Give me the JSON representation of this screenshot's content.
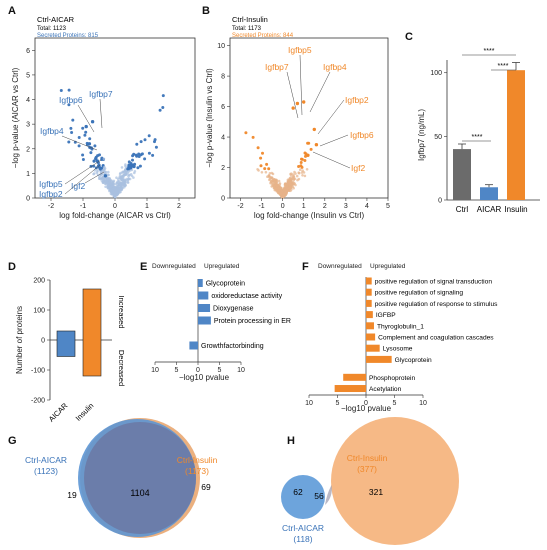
{
  "colors": {
    "aicar": "#3a73b8",
    "aicar_light": "#a9c1e0",
    "insulin": "#f0882a",
    "insulin_light": "#e7b48a",
    "ctrl": "#6b6b6b",
    "bar_blue": "#4f86c6"
  },
  "chart_data": [
    {
      "panel": "A",
      "type": "scatter",
      "title": "Ctrl-AICAR",
      "subtitle_total": "Total: 1123",
      "subtitle_secreted": "Secreted Proteins: 815",
      "xlabel": "log fold-change (AICAR vs Ctrl)",
      "ylabel": "−log p-value (AICAR vs Ctrl)",
      "xlim": [
        -2.5,
        2.5
      ],
      "ylim": [
        0,
        6.5
      ],
      "xticks": [
        "-2",
        "-1",
        "0",
        "1",
        "2"
      ],
      "yticks": [
        "0",
        "1",
        "2",
        "3",
        "4",
        "5",
        "6"
      ],
      "labels": [
        "Igfbp6",
        "Igfbp7",
        "Igfbp4",
        "Igfbp5",
        "Igfbp2",
        "Igf2"
      ],
      "labeled_points": [
        {
          "name": "Igfbp6",
          "x": -0.9,
          "y": 2.9
        },
        {
          "name": "Igfbp7",
          "x": -0.7,
          "y": 3.1
        },
        {
          "name": "Igfbp4",
          "x": -0.8,
          "y": 2.2
        },
        {
          "name": "Igfbp5",
          "x": -0.6,
          "y": 1.6
        },
        {
          "name": "Igfbp2",
          "x": -0.55,
          "y": 1.5
        },
        {
          "name": "Igf2",
          "x": -0.3,
          "y": 0.9
        }
      ]
    },
    {
      "panel": "B",
      "type": "scatter",
      "title": "Ctrl-Insulin",
      "subtitle_total": "Total: 1173",
      "subtitle_secreted": "Secreted Proteins: 844",
      "xlabel": "log fold-change (Insulin vs Ctrl)",
      "ylabel": "−log p-value (Insulin vs Ctrl)",
      "xlim": [
        -2.5,
        5
      ],
      "ylim": [
        0,
        10.5
      ],
      "xticks": [
        "-2",
        "-1",
        "0",
        "1",
        "2",
        "3",
        "4",
        "5"
      ],
      "yticks": [
        "0",
        "2",
        "4",
        "6",
        "8",
        "10"
      ],
      "labels": [
        "Igfbp5",
        "Igfbp7",
        "Igfbp4",
        "Igfbp2",
        "Igfbp6",
        "Igf2"
      ],
      "labeled_points": [
        {
          "name": "Igfbp5",
          "x": 0.7,
          "y": 6.2
        },
        {
          "name": "Igfbp7",
          "x": 0.5,
          "y": 5.9
        },
        {
          "name": "Igfbp4",
          "x": 1.0,
          "y": 6.3
        },
        {
          "name": "Igfbp2",
          "x": 1.5,
          "y": 4.5
        },
        {
          "name": "Igfbp6",
          "x": 1.6,
          "y": 3.5
        },
        {
          "name": "Igf2",
          "x": 1.2,
          "y": 2.8
        }
      ]
    },
    {
      "panel": "C",
      "type": "bar",
      "categories": [
        "Ctrl",
        "AICAR",
        "Insulin"
      ],
      "values": [
        40,
        10,
        102
      ],
      "errors": [
        4,
        2,
        6
      ],
      "ylabel": "Igfbp7 (ng/mL)",
      "ylim": [
        0,
        110
      ],
      "yticks": [
        "0",
        "50",
        "100"
      ],
      "significance": [
        "****",
        "****",
        "****"
      ]
    },
    {
      "panel": "D",
      "type": "bar",
      "categories": [
        "AICAR",
        "Insulin"
      ],
      "series": [
        {
          "name": "Increased",
          "values": [
            30,
            170
          ]
        },
        {
          "name": "Decreased",
          "values": [
            -55,
            -120
          ]
        }
      ],
      "ylabel": "Number of proteins",
      "ylim": [
        -200,
        200
      ],
      "yticks": [
        "200",
        "100",
        "0",
        "-100",
        "-200"
      ],
      "side_labels": [
        "Increased",
        "Decreased"
      ]
    },
    {
      "panel": "E",
      "type": "bar",
      "header_down": "Downregulated",
      "header_up": "Upregulated",
      "categories": [
        "Glycoprotein",
        "oxidoreductase activity",
        "Dioxygenase",
        "Protein processing in ER",
        "Growthfactorbinding"
      ],
      "values": [
        1.1,
        2.4,
        2.8,
        3.0,
        -2.0
      ],
      "xlabel": "−log10 pvalue",
      "xticks": [
        "10",
        "5",
        "0",
        "5",
        "10"
      ]
    },
    {
      "panel": "F",
      "type": "bar",
      "header_down": "Downregulated",
      "header_up": "Upregulated",
      "categories": [
        "positive regulation of signal transduction",
        "positive regulation of signaling",
        "positive regulation of response to stimulus",
        "IGFBP",
        "Thyroglobulin_1",
        "Complement and coagulation cascades",
        "Lysosome",
        "Glycoprotein",
        "Phosphoprotein",
        "Acetylation"
      ],
      "values": [
        1.0,
        1.0,
        1.0,
        1.2,
        1.4,
        1.6,
        2.4,
        4.5,
        -4.0,
        -5.5
      ],
      "xlabel": "−log10 pvalue",
      "xticks": [
        "10",
        "5",
        "0",
        "5",
        "10"
      ]
    },
    {
      "panel": "G",
      "type": "venn",
      "sets": [
        {
          "name": "Ctrl-AICAR",
          "size": "(1123)"
        },
        {
          "name": "Ctrl-Insulin",
          "size": "(1173)"
        }
      ],
      "only_left": "19",
      "overlap": "1104",
      "only_right": "69"
    },
    {
      "panel": "H",
      "type": "venn",
      "sets": [
        {
          "name": "Ctrl-AICAR",
          "size": "(118)"
        },
        {
          "name": "Ctrl-Insulin",
          "size": "(377)"
        }
      ],
      "only_left": "62",
      "overlap": "56",
      "only_right": "321"
    }
  ],
  "panel_letters": [
    "A",
    "B",
    "C",
    "D",
    "E",
    "F",
    "G",
    "H"
  ]
}
